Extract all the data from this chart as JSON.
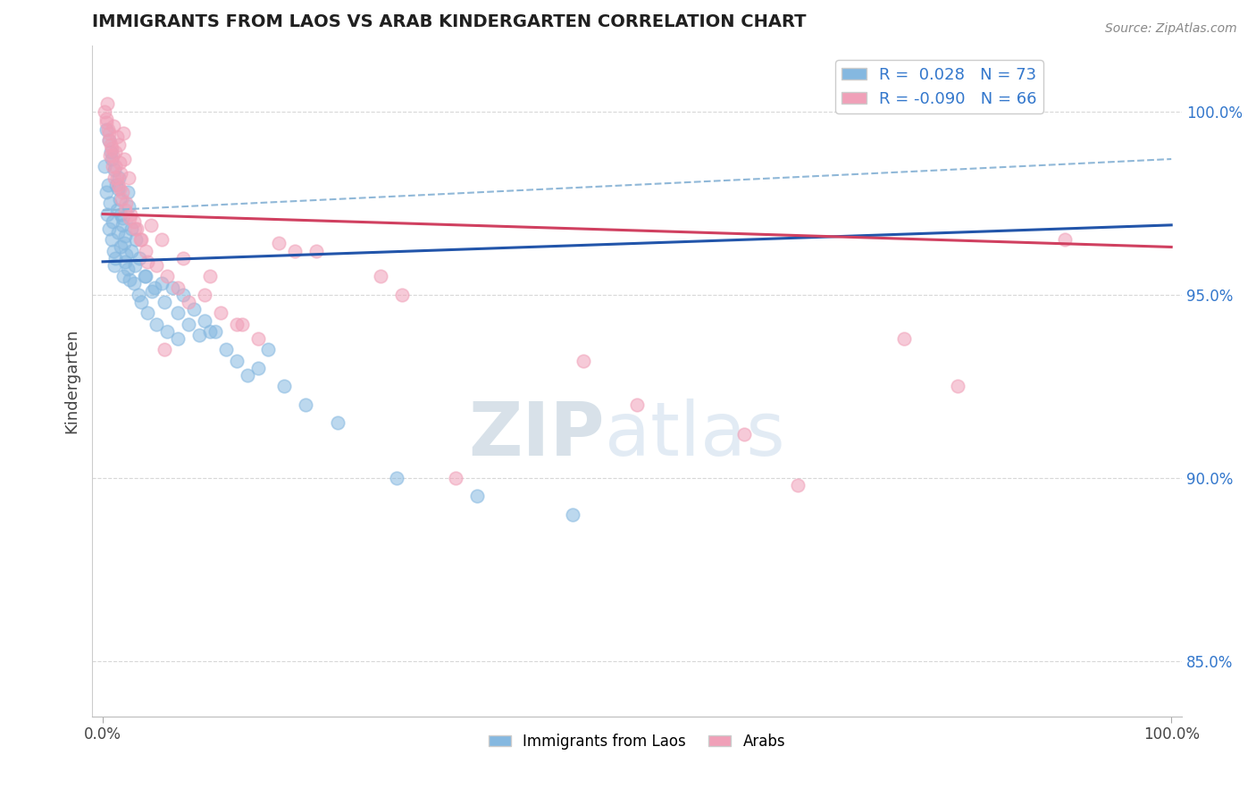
{
  "title": "IMMIGRANTS FROM LAOS VS ARAB KINDERGARTEN CORRELATION CHART",
  "source_text": "Source: ZipAtlas.com",
  "ylabel": "Kindergarten",
  "legend_blue_label": "Immigrants from Laos",
  "legend_pink_label": "Arabs",
  "R_blue": 0.028,
  "N_blue": 73,
  "R_pink": -0.09,
  "N_pink": 66,
  "y_ticks": [
    85.0,
    90.0,
    95.0,
    100.0
  ],
  "y_min": 83.5,
  "y_max": 101.8,
  "x_min": -1.0,
  "x_max": 101.0,
  "blue_color": "#85b8e0",
  "pink_color": "#f0a0b8",
  "blue_line_color": "#2255aa",
  "pink_line_color": "#d04060",
  "dashed_line_color": "#90b8d8",
  "watermark_color": "#ccd8e8",
  "background_color": "#ffffff",
  "grid_color": "#d8d8d8",
  "title_color": "#202020",
  "right_axis_color": "#3377cc",
  "blue_line_x0": 0,
  "blue_line_y0": 95.9,
  "blue_line_x1": 100,
  "blue_line_y1": 96.9,
  "pink_line_x0": 0,
  "pink_line_y0": 97.2,
  "pink_line_x1": 100,
  "pink_line_y1": 96.3,
  "dash_line_x0": 0,
  "dash_line_y0": 97.3,
  "dash_line_x1": 100,
  "dash_line_y1": 98.7,
  "blue_scatter_x": [
    0.2,
    0.3,
    0.4,
    0.5,
    0.6,
    0.7,
    0.8,
    0.9,
    1.0,
    1.1,
    1.2,
    1.3,
    1.4,
    1.5,
    1.6,
    1.7,
    1.8,
    1.9,
    2.0,
    2.1,
    2.2,
    2.3,
    2.4,
    2.5,
    2.7,
    2.9,
    3.1,
    3.3,
    3.6,
    3.9,
    4.2,
    4.6,
    5.0,
    5.5,
    6.0,
    6.5,
    7.0,
    7.5,
    8.5,
    9.5,
    10.5,
    11.5,
    12.5,
    13.5,
    14.5,
    15.5,
    17.0,
    19.0,
    22.0,
    27.5,
    35.0,
    44.0,
    0.35,
    0.55,
    0.75,
    0.85,
    1.05,
    1.25,
    1.45,
    1.65,
    1.85,
    2.05,
    2.35,
    2.65,
    3.0,
    3.4,
    4.0,
    4.8,
    5.8,
    7.0,
    8.0,
    9.0,
    10.0
  ],
  "blue_scatter_y": [
    98.5,
    97.8,
    97.2,
    98.0,
    96.8,
    97.5,
    96.5,
    97.0,
    96.2,
    95.8,
    96.0,
    97.3,
    96.7,
    98.2,
    97.6,
    96.3,
    97.1,
    95.5,
    96.4,
    95.9,
    96.1,
    95.7,
    97.4,
    95.4,
    96.8,
    95.3,
    96.5,
    95.0,
    94.8,
    95.5,
    94.5,
    95.1,
    94.2,
    95.3,
    94.0,
    95.2,
    93.8,
    95.0,
    94.6,
    94.3,
    94.0,
    93.5,
    93.2,
    92.8,
    93.0,
    93.5,
    92.5,
    92.0,
    91.5,
    90.0,
    89.5,
    89.0,
    99.5,
    99.2,
    98.9,
    98.7,
    98.4,
    98.0,
    97.9,
    97.2,
    96.9,
    96.6,
    97.8,
    96.2,
    95.8,
    96.0,
    95.5,
    95.2,
    94.8,
    94.5,
    94.2,
    93.9,
    94.0
  ],
  "pink_scatter_x": [
    0.2,
    0.3,
    0.4,
    0.5,
    0.6,
    0.7,
    0.8,
    0.9,
    1.0,
    1.1,
    1.2,
    1.3,
    1.4,
    1.5,
    1.6,
    1.7,
    1.8,
    1.9,
    2.0,
    2.2,
    2.4,
    2.6,
    2.9,
    3.2,
    3.6,
    4.0,
    4.5,
    5.0,
    5.5,
    6.0,
    7.0,
    8.0,
    9.5,
    11.0,
    12.5,
    14.5,
    16.5,
    20.0,
    26.0,
    33.0,
    50.0,
    65.0,
    80.0,
    0.35,
    0.55,
    0.75,
    0.95,
    1.15,
    1.35,
    1.55,
    1.75,
    2.1,
    2.5,
    3.0,
    3.5,
    4.2,
    5.8,
    7.5,
    10.0,
    13.0,
    18.0,
    28.0,
    45.0,
    60.0,
    75.0,
    90.0
  ],
  "pink_scatter_y": [
    100.0,
    99.8,
    100.2,
    99.5,
    99.2,
    98.8,
    99.0,
    98.5,
    99.6,
    98.2,
    98.9,
    99.3,
    98.0,
    99.1,
    98.6,
    98.3,
    97.8,
    99.4,
    98.7,
    97.5,
    98.2,
    97.2,
    97.0,
    96.8,
    96.5,
    96.2,
    96.9,
    95.8,
    96.5,
    95.5,
    95.2,
    94.8,
    95.0,
    94.5,
    94.2,
    93.8,
    96.4,
    96.2,
    95.5,
    90.0,
    92.0,
    89.8,
    92.5,
    99.7,
    99.4,
    99.1,
    98.8,
    98.5,
    98.2,
    97.9,
    97.6,
    97.3,
    97.1,
    96.8,
    96.5,
    95.9,
    93.5,
    96.0,
    95.5,
    94.2,
    96.2,
    95.0,
    93.2,
    91.2,
    93.8,
    96.5
  ]
}
